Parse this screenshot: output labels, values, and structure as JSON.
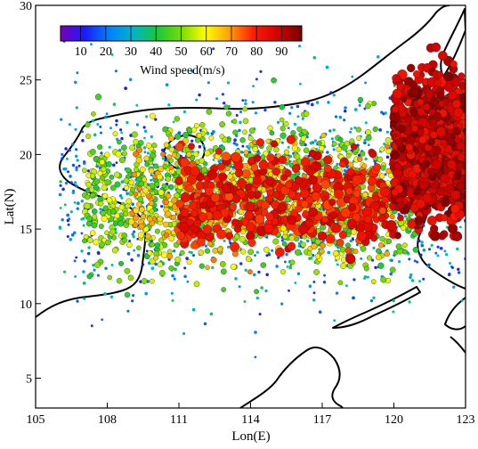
{
  "chart_data": {
    "type": "scatter",
    "title": "",
    "xlabel": "Lon(E)",
    "ylabel": "Lat(N)",
    "xlim": [
      105,
      123
    ],
    "ylim": [
      3,
      30
    ],
    "xticks": [
      105,
      108,
      111,
      114,
      117,
      120,
      123
    ],
    "yticks": [
      5,
      10,
      15,
      20,
      25,
      30
    ],
    "background_map": "coastline outline (South China, Indochina, Hainan, Taiwan, Philippines, Borneo)",
    "colorbar": {
      "label": "Wind speed(m/s)",
      "ticks": [
        10,
        20,
        30,
        40,
        50,
        60,
        70,
        80,
        90
      ],
      "range": [
        2,
        98
      ],
      "palette": [
        "#7a00b8",
        "#1a1aff",
        "#0080ff",
        "#00b4c8",
        "#18c840",
        "#78dc00",
        "#ffff00",
        "#ffa000",
        "#ff1c00",
        "#d20000",
        "#780000"
      ],
      "placement": "inside top-left"
    },
    "series": [
      {
        "density": "very high",
        "lon_range": [
          106,
          123
        ],
        "lat_range": [
          7,
          28
        ],
        "speed_range": [
          10,
          40
        ],
        "size": "small"
      },
      {
        "density": "very high",
        "lon_range": [
          107,
          121
        ],
        "lat_range": [
          10.5,
          24
        ],
        "speed_range": [
          40,
          60
        ],
        "size": "medium"
      },
      {
        "density": "high",
        "lon_range": [
          109,
          120
        ],
        "lat_range": [
          12,
          22
        ],
        "speed_range": [
          60,
          72
        ],
        "size": "medium"
      },
      {
        "density": "high",
        "lon_range": [
          111,
          120
        ],
        "lat_range": [
          12.5,
          21
        ],
        "speed_range": [
          75,
          88
        ],
        "size": "large"
      },
      {
        "density": "very high",
        "lon_range": [
          120,
          123
        ],
        "lat_range": [
          14,
          27
        ],
        "speed_range": [
          80,
          98
        ],
        "size": "large"
      }
    ]
  }
}
